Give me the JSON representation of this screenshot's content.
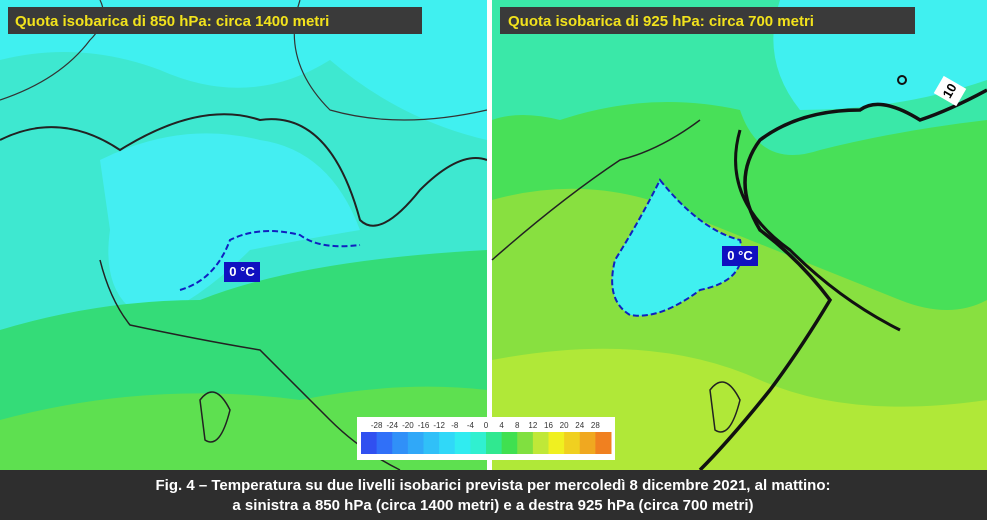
{
  "panels": [
    {
      "title": "Quota isobarica di 850 hPa: circa 1400 metri",
      "isotherm_label": "0 °C"
    },
    {
      "title": "Quota isobarica di 925 hPa: circa 700 metri",
      "isotherm_label": "0 °C",
      "contour_label": "10"
    }
  ],
  "colorbar": {
    "labels": [
      -28,
      -24,
      -20,
      -16,
      -12,
      -8,
      -4,
      0,
      4,
      8,
      12,
      16,
      20,
      24,
      28
    ],
    "colors": [
      "#3050f0",
      "#3070f8",
      "#3090f8",
      "#30a8f8",
      "#30c0f8",
      "#30d8f8",
      "#30ecf0",
      "#30f0d0",
      "#30e890",
      "#40e050",
      "#80e040",
      "#c0e838",
      "#f0f020",
      "#f0d020",
      "#f0a820",
      "#f08020"
    ]
  },
  "caption": {
    "line1": "Fig. 4 – Temperatura su due livelli isobarici prevista per mercoledì 8 dicembre 2021, al mattino:",
    "line2": "a sinistra a 850 hPa (circa 1400 metri) e a destra 925 hPa (circa 700 metri)"
  }
}
